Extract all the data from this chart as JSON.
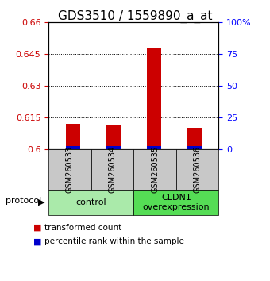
{
  "title": "GDS3510 / 1559890_a_at",
  "samples": [
    "GSM260533",
    "GSM260534",
    "GSM260535",
    "GSM260536"
  ],
  "red_values": [
    0.612,
    0.611,
    0.648,
    0.61
  ],
  "blue_values": [
    0.6015,
    0.6015,
    0.6015,
    0.6015
  ],
  "ylim": [
    0.6,
    0.66
  ],
  "yticks_left": [
    0.6,
    0.615,
    0.63,
    0.645,
    0.66
  ],
  "yticks_right": [
    0,
    25,
    50,
    75,
    100
  ],
  "ytick_right_labels": [
    "0",
    "25",
    "50",
    "75",
    "100%"
  ],
  "groups": [
    {
      "label": "control",
      "samples": [
        0,
        1
      ],
      "color": "#AAEAAA"
    },
    {
      "label": "CLDN1\noverexpression",
      "samples": [
        2,
        3
      ],
      "color": "#55DD55"
    }
  ],
  "bar_width": 0.35,
  "red_color": "#CC0000",
  "blue_color": "#0000CC",
  "label_box_color": "#C8C8C8",
  "protocol_label": "protocol",
  "legend_red": "transformed count",
  "legend_blue": "percentile rank within the sample",
  "title_fontsize": 11,
  "tick_fontsize": 8,
  "sample_fontsize": 7,
  "group_fontsize": 8,
  "legend_fontsize": 7.5
}
